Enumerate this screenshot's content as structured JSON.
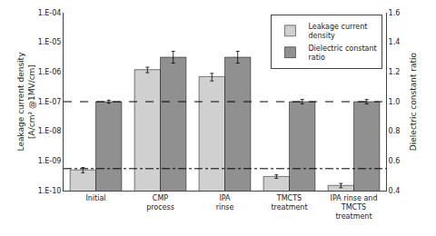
{
  "chart_data": {
    "type": "bar",
    "categories": [
      "Initial",
      "CMP\nprocess",
      "IPA\nrinse",
      "TMCTS\ntreatment",
      "IPA rinse and\nTMCTS\ntreatment"
    ],
    "series": [
      {
        "name": "Leakage current\ndensity",
        "color": "#d0d0d0",
        "values": [
          5e-10,
          1.2e-06,
          7e-07,
          3e-10,
          1.5e-10
        ],
        "errors": [
          1e-10,
          2.5e-07,
          2e-07,
          4e-11,
          2.5e-11
        ]
      },
      {
        "name": "Dielectric constant\nratio",
        "color": "#909090",
        "values": [
          1.0,
          1.3,
          1.3,
          1.0,
          1.0
        ],
        "errors": [
          0.01,
          0.04,
          0.04,
          0.015,
          0.015
        ],
        "axis": "y2"
      }
    ],
    "ylabel": "Leakage current density\n[A/cm² @1MV/cm]",
    "y2label": "Dielectric constant ratio",
    "log": "y",
    "ylim": [
      1e-10,
      0.0001
    ],
    "yticks": [
      {
        "value": 1e-10,
        "label": "1.E-10"
      },
      {
        "value": 1e-09,
        "label": "1.E-09"
      },
      {
        "value": 1e-08,
        "label": "1.E-08"
      },
      {
        "value": 1e-07,
        "label": "1.E-07"
      },
      {
        "value": 1e-06,
        "label": "1.E-06"
      },
      {
        "value": 1e-05,
        "label": "1.E-05"
      },
      {
        "value": 0.0001,
        "label": "1.E-04"
      }
    ],
    "y2lim": [
      0.4,
      1.6
    ],
    "y2ticks": [
      0.4,
      0.6,
      0.8,
      {
        "value": 1.0,
        "label": "1.0"
      },
      1.2,
      1.4,
      1.6
    ],
    "grid": false,
    "legend": "upper right",
    "reference_lines": [
      {
        "y": 1e-07,
        "line_style": "dashed"
      },
      {
        "y": 5.5e-10,
        "line_style": "dashdot"
      }
    ]
  }
}
